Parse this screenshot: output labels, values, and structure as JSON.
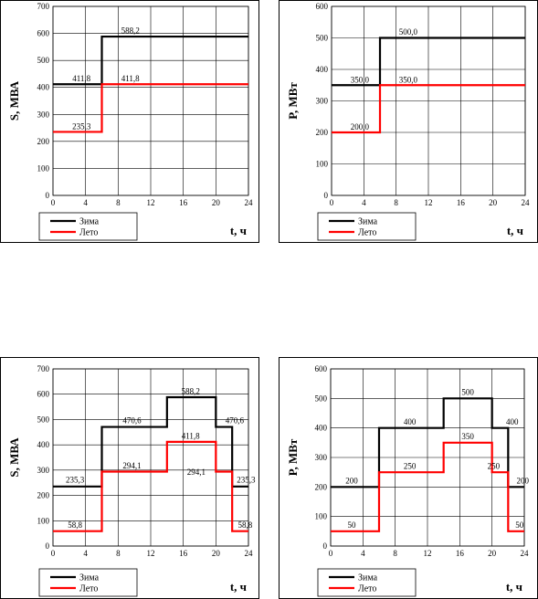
{
  "colors": {
    "winter": "#000000",
    "summer": "#ff0000",
    "grid": "#000000"
  },
  "chart_data": [
    {
      "type": "line",
      "step": true,
      "ylabel": "S, МВА",
      "xlabel": "t, ч",
      "xlim": [
        0,
        24
      ],
      "ylim": [
        0,
        700
      ],
      "xticks": [
        "0",
        "4",
        "8",
        "12",
        "16",
        "20",
        "24"
      ],
      "yticks": [
        "0",
        "100",
        "200",
        "300",
        "400",
        "500",
        "600",
        "700"
      ],
      "grid": true,
      "legend_position": "bottom-left",
      "series": [
        {
          "name": "Зима",
          "color": "#000000",
          "x": [
            0,
            6,
            6,
            24
          ],
          "y": [
            411.8,
            411.8,
            588.2,
            588.2
          ]
        },
        {
          "name": "Лето",
          "color": "#ff0000",
          "x": [
            0,
            6,
            6,
            24
          ],
          "y": [
            235.3,
            235.3,
            411.8,
            411.8
          ]
        }
      ],
      "annotations": [
        {
          "text": "588,2",
          "x": 9.5,
          "y": 600
        },
        {
          "text": "411,8",
          "x": 3.5,
          "y": 422
        },
        {
          "text": "411,8",
          "x": 9.5,
          "y": 422
        },
        {
          "text": "235,3",
          "x": 3.5,
          "y": 246
        }
      ]
    },
    {
      "type": "line",
      "step": true,
      "ylabel": "P, МВт",
      "xlabel": "t, ч",
      "xlim": [
        0,
        24
      ],
      "ylim": [
        0,
        600
      ],
      "xticks": [
        "0",
        "4",
        "8",
        "12",
        "16",
        "20",
        "24"
      ],
      "yticks": [
        "0",
        "100",
        "200",
        "300",
        "400",
        "500",
        "600"
      ],
      "grid": true,
      "legend_position": "bottom-left",
      "series": [
        {
          "name": "Зима",
          "color": "#000000",
          "x": [
            0,
            6,
            6,
            24
          ],
          "y": [
            350,
            350,
            500,
            500
          ]
        },
        {
          "name": "Лето",
          "color": "#ff0000",
          "x": [
            0,
            6,
            6,
            24
          ],
          "y": [
            200,
            200,
            350,
            350
          ]
        }
      ],
      "annotations": [
        {
          "text": "500,0",
          "x": 9.5,
          "y": 510
        },
        {
          "text": "350,0",
          "x": 3.5,
          "y": 358
        },
        {
          "text": "350,0",
          "x": 9.5,
          "y": 358
        },
        {
          "text": "200,0",
          "x": 3.5,
          "y": 209
        }
      ]
    },
    {
      "type": "line",
      "step": true,
      "ylabel": "S, МВА",
      "xlabel": "t, ч",
      "xlim": [
        0,
        24
      ],
      "ylim": [
        0,
        700
      ],
      "xticks": [
        "0",
        "4",
        "8",
        "12",
        "16",
        "20",
        "24"
      ],
      "yticks": [
        "0",
        "100",
        "200",
        "300",
        "400",
        "500",
        "600",
        "700"
      ],
      "grid": true,
      "legend_position": "bottom-left",
      "series": [
        {
          "name": "Зима",
          "color": "#000000",
          "x": [
            0,
            6,
            6,
            14,
            14,
            20,
            20,
            22,
            22,
            24
          ],
          "y": [
            235.3,
            235.3,
            470.6,
            470.6,
            588.2,
            588.2,
            470.6,
            470.6,
            235.3,
            235.3
          ]
        },
        {
          "name": "Лето",
          "color": "#ff0000",
          "x": [
            0,
            6,
            6,
            14,
            14,
            20,
            20,
            22,
            22,
            24
          ],
          "y": [
            58.8,
            58.8,
            294.1,
            294.1,
            411.8,
            411.8,
            294.1,
            294.1,
            58.8,
            58.8
          ]
        }
      ],
      "annotations": [
        {
          "text": "235,3",
          "x": 2.7,
          "y": 250
        },
        {
          "text": "470,6",
          "x": 9.7,
          "y": 485
        },
        {
          "text": "588,2",
          "x": 16.9,
          "y": 600
        },
        {
          "text": "470,6",
          "x": 22.3,
          "y": 485
        },
        {
          "text": "294,1",
          "x": 9.7,
          "y": 306
        },
        {
          "text": "411,8",
          "x": 16.9,
          "y": 424
        },
        {
          "text": "294,1",
          "x": 17.6,
          "y": 282
        },
        {
          "text": "235,3",
          "x": 23.7,
          "y": 250
        },
        {
          "text": "58,8",
          "x": 2.7,
          "y": 72
        },
        {
          "text": "58,8",
          "x": 23.6,
          "y": 72
        }
      ]
    },
    {
      "type": "line",
      "step": true,
      "ylabel": "P, МВт",
      "xlabel": "t, ч",
      "xlim": [
        0,
        24
      ],
      "ylim": [
        0,
        600
      ],
      "xticks": [
        "0",
        "4",
        "8",
        "12",
        "16",
        "20",
        "24"
      ],
      "yticks": [
        "0",
        "100",
        "200",
        "300",
        "400",
        "500",
        "600"
      ],
      "grid": true,
      "legend_position": "bottom-left",
      "series": [
        {
          "name": "Зима",
          "color": "#000000",
          "x": [
            0,
            6,
            6,
            14,
            14,
            20,
            20,
            22,
            22,
            24
          ],
          "y": [
            200,
            200,
            400,
            400,
            500,
            500,
            400,
            400,
            200,
            200
          ]
        },
        {
          "name": "Лето",
          "color": "#ff0000",
          "x": [
            0,
            6,
            6,
            14,
            14,
            20,
            20,
            22,
            22,
            24
          ],
          "y": [
            50,
            50,
            250,
            250,
            350,
            350,
            250,
            250,
            50,
            50
          ]
        }
      ],
      "annotations": [
        {
          "text": "200",
          "x": 2.6,
          "y": 212
        },
        {
          "text": "400",
          "x": 9.8,
          "y": 412
        },
        {
          "text": "500",
          "x": 17.0,
          "y": 512
        },
        {
          "text": "400",
          "x": 22.5,
          "y": 412
        },
        {
          "text": "250",
          "x": 9.8,
          "y": 262
        },
        {
          "text": "350",
          "x": 17.0,
          "y": 362
        },
        {
          "text": "250",
          "x": 20.2,
          "y": 262
        },
        {
          "text": "200",
          "x": 23.8,
          "y": 212
        },
        {
          "text": "50",
          "x": 2.6,
          "y": 62
        },
        {
          "text": "50",
          "x": 23.4,
          "y": 62
        }
      ]
    }
  ]
}
